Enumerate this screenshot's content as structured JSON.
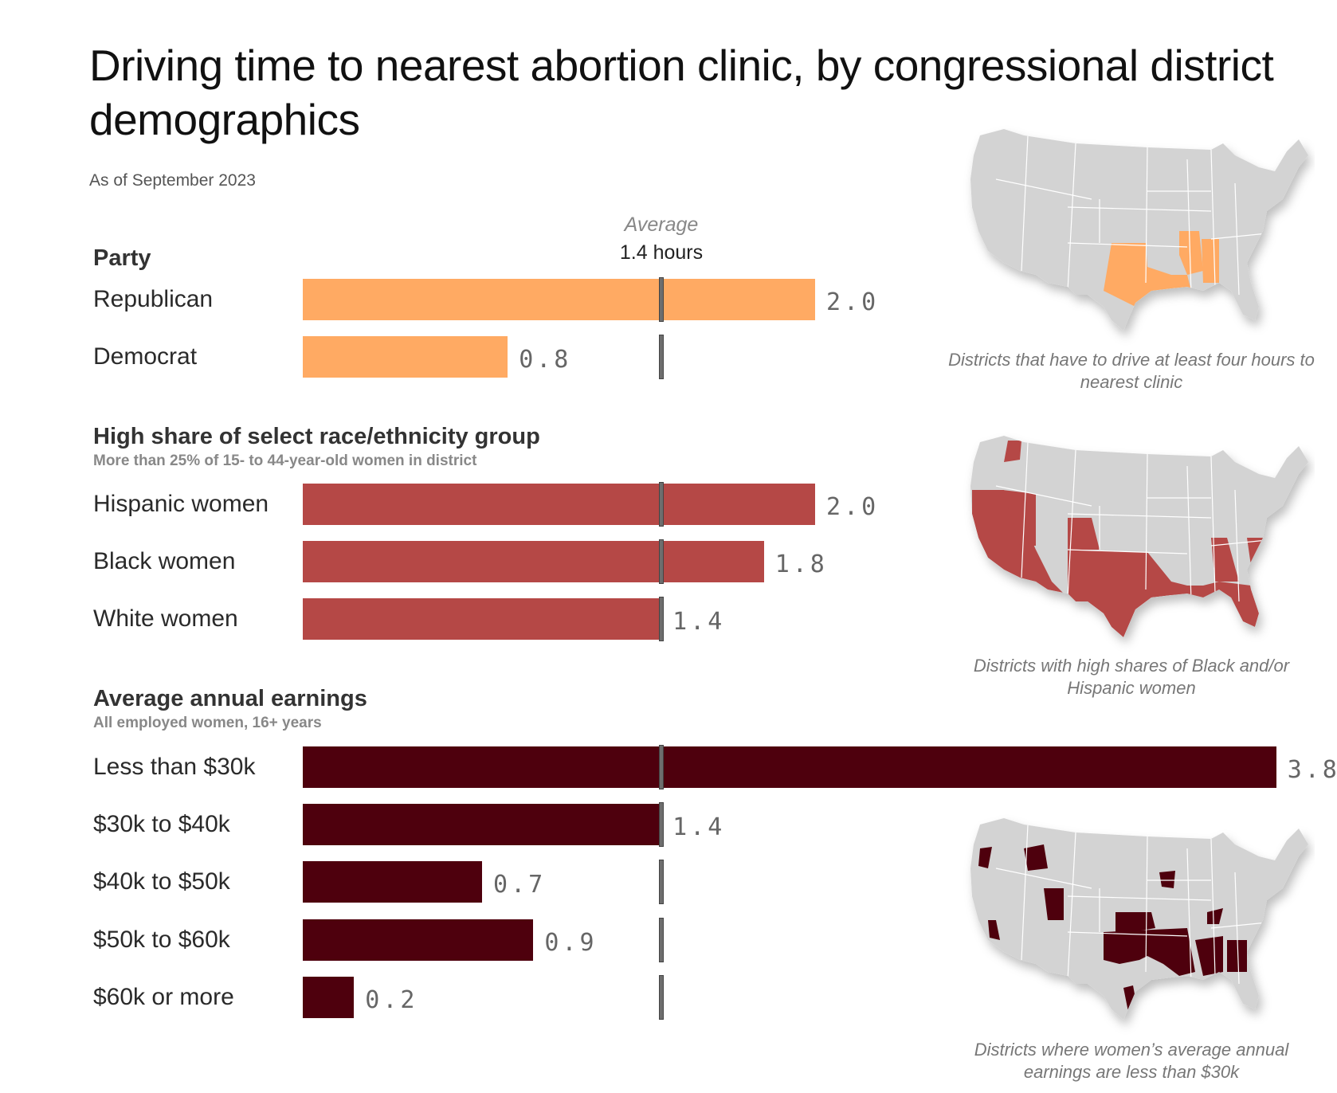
{
  "header": {
    "title": "Driving time to nearest abortion clinic, by congressional district demographics",
    "subtitle": "As of September 2023",
    "average_label": "Average",
    "average_value": "1.4 hours"
  },
  "colors": {
    "party": "#FFAA63",
    "race": "#B54846",
    "earnings": "#4E000D",
    "map_base": "#D3D3D3",
    "avg_marker": "#6E6E6E"
  },
  "chart_data": {
    "type": "bar",
    "orientation": "horizontal",
    "title": "Driving time to nearest abortion clinic, by congressional district demographics",
    "units": "hours",
    "reference_line": {
      "label": "Average",
      "value": 1.4
    },
    "groups": [
      {
        "title": "Party",
        "note": "",
        "categories": [
          "Republican",
          "Democrat"
        ],
        "values": [
          2.0,
          0.8
        ],
        "value_labels": [
          "2.0",
          "0.8"
        ]
      },
      {
        "title": "High share of select race/ethnicity group",
        "note": "More than 25% of 15- to 44-year-old women in district",
        "categories": [
          "Hispanic women",
          "Black women",
          "White women"
        ],
        "values": [
          2.0,
          1.8,
          1.4
        ],
        "value_labels": [
          "2.0",
          "1.8",
          "1.4"
        ]
      },
      {
        "title": "Average annual earnings",
        "note": "All employed women, 16+ years",
        "categories": [
          "Less than $30k",
          "$30k to $40k",
          "$40k to $50k",
          "$50k to $60k",
          "$60k or more"
        ],
        "values": [
          3.8,
          1.4,
          0.7,
          0.9,
          0.2
        ],
        "value_labels": [
          "3.8",
          "1.4",
          "0.7",
          "0.9",
          "0.2"
        ]
      }
    ]
  },
  "maps": [
    {
      "caption": "Districts that have to drive at least four hours to nearest clinic",
      "highlight": "party"
    },
    {
      "caption": "Districts with high shares of Black and/or Hispanic women",
      "highlight": "race"
    },
    {
      "caption": "Districts where women’s average annual earnings are less than $30k",
      "highlight": "earnings"
    }
  ]
}
